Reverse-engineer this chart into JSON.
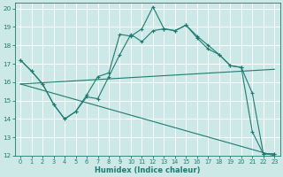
{
  "xlabel": "Humidex (Indice chaleur)",
  "xlim": [
    -0.5,
    23.5
  ],
  "ylim": [
    12,
    20.3
  ],
  "yticks": [
    12,
    13,
    14,
    15,
    16,
    17,
    18,
    19,
    20
  ],
  "xticks": [
    0,
    1,
    2,
    3,
    4,
    5,
    6,
    7,
    8,
    9,
    10,
    11,
    12,
    13,
    14,
    15,
    16,
    17,
    18,
    19,
    20,
    21,
    22,
    23
  ],
  "bg_color": "#cce9e8",
  "grid_color": "#ffffff",
  "line_color": "#1e7b70",
  "lines": [
    {
      "x": [
        0,
        1,
        2,
        3,
        4,
        5,
        6,
        7,
        8,
        9,
        10,
        11,
        12,
        13,
        14,
        15,
        16,
        17,
        18,
        19,
        20,
        21,
        22,
        23
      ],
      "y": [
        17.2,
        16.6,
        15.9,
        14.8,
        14.0,
        14.4,
        15.3,
        16.3,
        16.5,
        18.6,
        18.5,
        18.9,
        20.1,
        18.9,
        18.8,
        19.1,
        18.4,
        17.8,
        17.5,
        16.9,
        16.8,
        13.3,
        12.1,
        12.1
      ],
      "marker": true
    },
    {
      "x": [
        0,
        1,
        2,
        3,
        4,
        5,
        6,
        7,
        8,
        9,
        10,
        11,
        12,
        13,
        14,
        15,
        16,
        17,
        18,
        19,
        20,
        21,
        22,
        23
      ],
      "y": [
        17.2,
        16.6,
        15.9,
        14.8,
        14.0,
        14.4,
        15.2,
        15.1,
        16.3,
        17.5,
        18.6,
        18.2,
        18.8,
        18.9,
        18.8,
        19.1,
        18.5,
        18.0,
        17.5,
        16.9,
        16.8,
        15.4,
        12.1,
        12.1
      ],
      "marker": true
    },
    {
      "x": [
        0,
        23
      ],
      "y": [
        15.9,
        16.7
      ],
      "marker": false
    },
    {
      "x": [
        0,
        23
      ],
      "y": [
        15.9,
        12.0
      ],
      "marker": false
    }
  ]
}
